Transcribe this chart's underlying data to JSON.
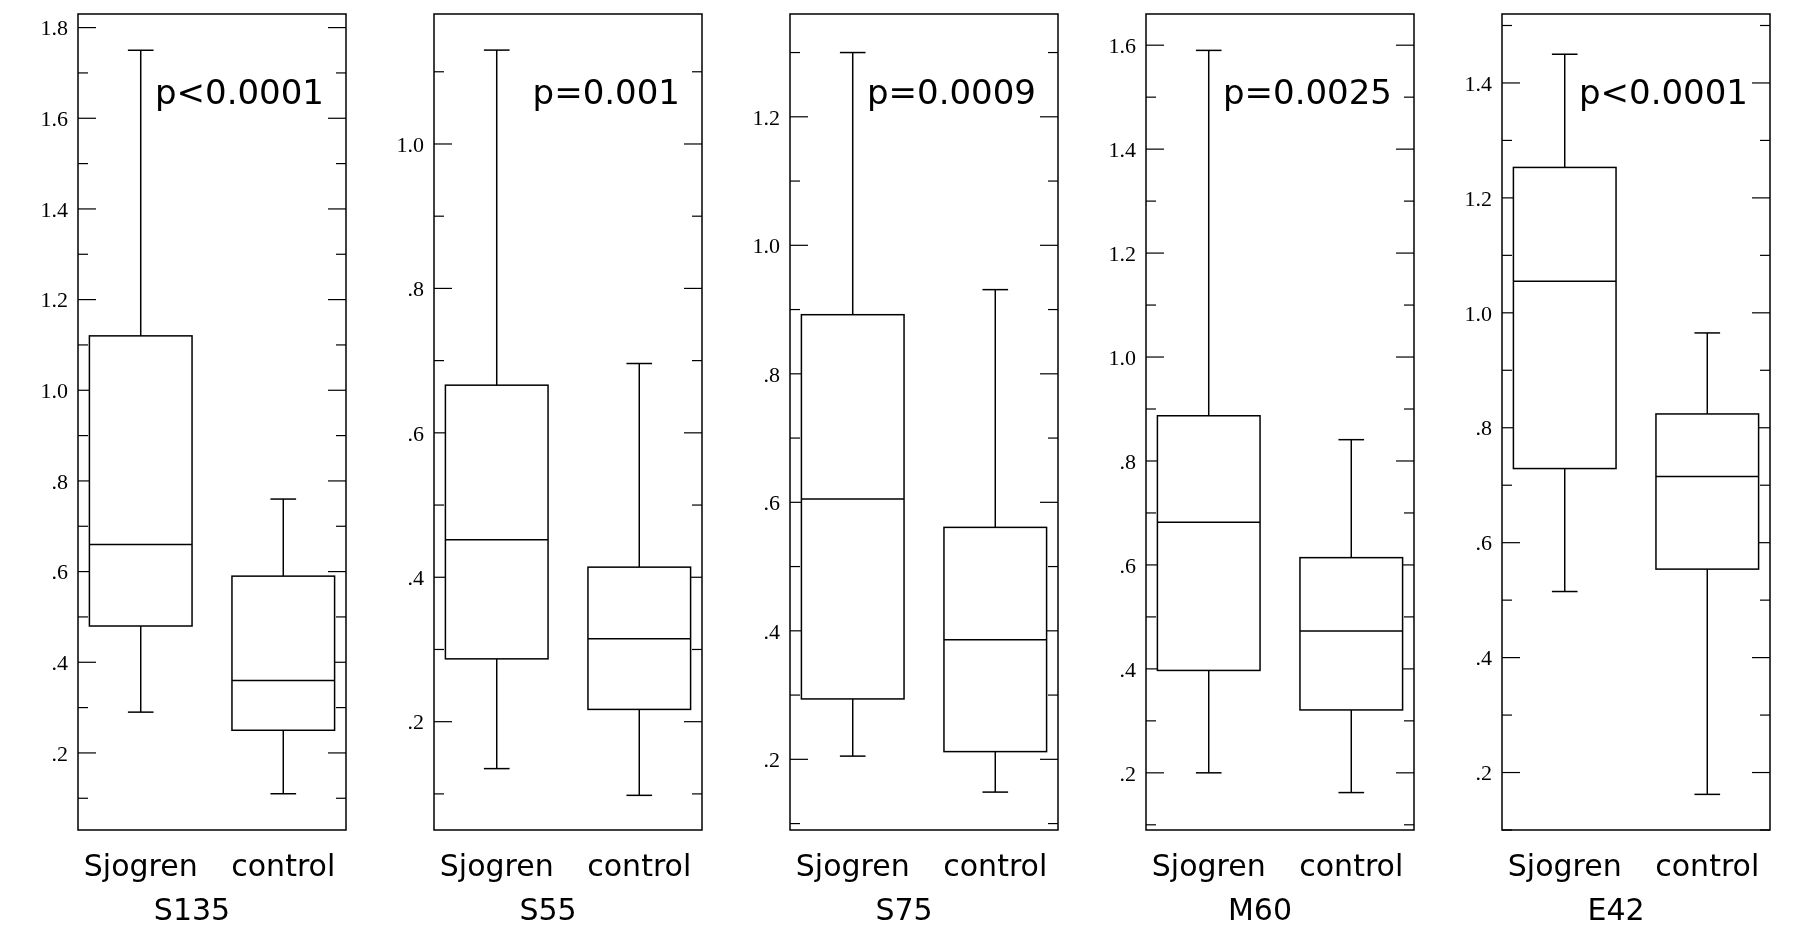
{
  "chart_data": [
    {
      "type": "box",
      "xlabel": "S135",
      "categories": [
        "Sjogren",
        "control"
      ],
      "ylim": [
        0.03,
        1.83
      ],
      "yticks": [
        {
          "value": 0.1,
          "label": null
        },
        {
          "value": 0.2,
          "label": ".2"
        },
        {
          "value": 0.3,
          "label": null
        },
        {
          "value": 0.4,
          "label": ".4"
        },
        {
          "value": 0.5,
          "label": null
        },
        {
          "value": 0.6,
          "label": ".6"
        },
        {
          "value": 0.7,
          "label": null
        },
        {
          "value": 0.8,
          "label": ".8"
        },
        {
          "value": 0.9,
          "label": null
        },
        {
          "value": 1.0,
          "label": "1.0"
        },
        {
          "value": 1.1,
          "label": null
        },
        1.2,
        {
          "value": 1.3,
          "label": null
        },
        1.4,
        {
          "value": 1.5,
          "label": null
        },
        1.6,
        {
          "value": 1.7,
          "label": null
        },
        1.8
      ],
      "boxes": [
        {
          "low": 0.29,
          "q1": 0.48,
          "median": 0.66,
          "q3": 1.12,
          "high": 1.75
        },
        {
          "low": 0.11,
          "q1": 0.25,
          "median": 0.36,
          "q3": 0.59,
          "high": 0.76
        }
      ],
      "annotations": [
        "p<0.0001"
      ]
    },
    {
      "type": "box",
      "xlabel": "S55",
      "categories": [
        "Sjogren",
        "control"
      ],
      "ylim": [
        0.05,
        1.18
      ],
      "yticks": [
        {
          "value": 0.1,
          "label": null
        },
        {
          "value": 0.2,
          "label": ".2"
        },
        {
          "value": 0.3,
          "label": null
        },
        {
          "value": 0.4,
          "label": ".4"
        },
        {
          "value": 0.5,
          "label": null
        },
        {
          "value": 0.6,
          "label": ".6"
        },
        {
          "value": 0.7,
          "label": null
        },
        {
          "value": 0.8,
          "label": ".8"
        },
        {
          "value": 0.9,
          "label": null
        },
        {
          "value": 1.0,
          "label": "1.0"
        },
        {
          "value": 1.1,
          "label": null
        }
      ],
      "boxes": [
        {
          "low": 0.135,
          "q1": 0.287,
          "median": 0.452,
          "q3": 0.666,
          "high": 1.13
        },
        {
          "low": 0.098,
          "q1": 0.217,
          "median": 0.315,
          "q3": 0.414,
          "high": 0.696
        }
      ],
      "annotations": [
        "p=0.001"
      ]
    },
    {
      "type": "box",
      "xlabel": "S75",
      "categories": [
        "Sjogren",
        "control"
      ],
      "ylim": [
        0.09,
        1.36
      ],
      "yticks": [
        {
          "value": 0.1,
          "label": null
        },
        {
          "value": 0.2,
          "label": ".2"
        },
        {
          "value": 0.3,
          "label": null
        },
        {
          "value": 0.4,
          "label": ".4"
        },
        {
          "value": 0.5,
          "label": null
        },
        {
          "value": 0.6,
          "label": ".6"
        },
        {
          "value": 0.7,
          "label": null
        },
        {
          "value": 0.8,
          "label": ".8"
        },
        {
          "value": 0.9,
          "label": null
        },
        {
          "value": 1.0,
          "label": "1.0"
        },
        {
          "value": 1.1,
          "label": null
        },
        1.2,
        {
          "value": 1.3,
          "label": null
        }
      ],
      "boxes": [
        {
          "low": 0.205,
          "q1": 0.294,
          "median": 0.605,
          "q3": 0.892,
          "high": 1.3
        },
        {
          "low": 0.149,
          "q1": 0.212,
          "median": 0.386,
          "q3": 0.561,
          "high": 0.931
        }
      ],
      "annotations": [
        "p=0.0009"
      ]
    },
    {
      "type": "box",
      "xlabel": "M60",
      "categories": [
        "Sjogren",
        "control"
      ],
      "ylim": [
        0.09,
        1.66
      ],
      "yticks": [
        {
          "value": 0.1,
          "label": null
        },
        {
          "value": 0.2,
          "label": ".2"
        },
        {
          "value": 0.3,
          "label": null
        },
        {
          "value": 0.4,
          "label": ".4"
        },
        {
          "value": 0.5,
          "label": null
        },
        {
          "value": 0.6,
          "label": ".6"
        },
        {
          "value": 0.7,
          "label": null
        },
        {
          "value": 0.8,
          "label": ".8"
        },
        {
          "value": 0.9,
          "label": null
        },
        {
          "value": 1.0,
          "label": "1.0"
        },
        {
          "value": 1.1,
          "label": null
        },
        1.2,
        {
          "value": 1.3,
          "label": null
        },
        1.4,
        {
          "value": 1.5,
          "label": null
        },
        1.6
      ],
      "boxes": [
        {
          "low": 0.2,
          "q1": 0.397,
          "median": 0.682,
          "q3": 0.887,
          "high": 1.59
        },
        {
          "low": 0.162,
          "q1": 0.321,
          "median": 0.473,
          "q3": 0.614,
          "high": 0.841
        }
      ],
      "annotations": [
        "p=0.0025"
      ]
    },
    {
      "type": "box",
      "xlabel": "E42",
      "categories": [
        "Sjogren",
        "control"
      ],
      "ylim": [
        0.1,
        1.52
      ],
      "yticks": [
        {
          "value": 0.1,
          "label": null
        },
        {
          "value": 0.2,
          "label": ".2"
        },
        {
          "value": 0.3,
          "label": null
        },
        {
          "value": 0.4,
          "label": ".4"
        },
        {
          "value": 0.5,
          "label": null
        },
        {
          "value": 0.6,
          "label": ".6"
        },
        {
          "value": 0.7,
          "label": null
        },
        {
          "value": 0.8,
          "label": ".8"
        },
        {
          "value": 0.9,
          "label": null
        },
        {
          "value": 1.0,
          "label": "1.0"
        },
        {
          "value": 1.1,
          "label": null
        },
        1.2,
        {
          "value": 1.3,
          "label": null
        },
        1.4,
        {
          "value": 1.5,
          "label": null
        }
      ],
      "boxes": [
        {
          "low": 0.515,
          "q1": 0.729,
          "median": 1.055,
          "q3": 1.253,
          "high": 1.45
        },
        {
          "low": 0.162,
          "q1": 0.554,
          "median": 0.715,
          "q3": 0.824,
          "high": 0.965
        }
      ],
      "annotations": [
        "p<0.0001"
      ]
    }
  ]
}
